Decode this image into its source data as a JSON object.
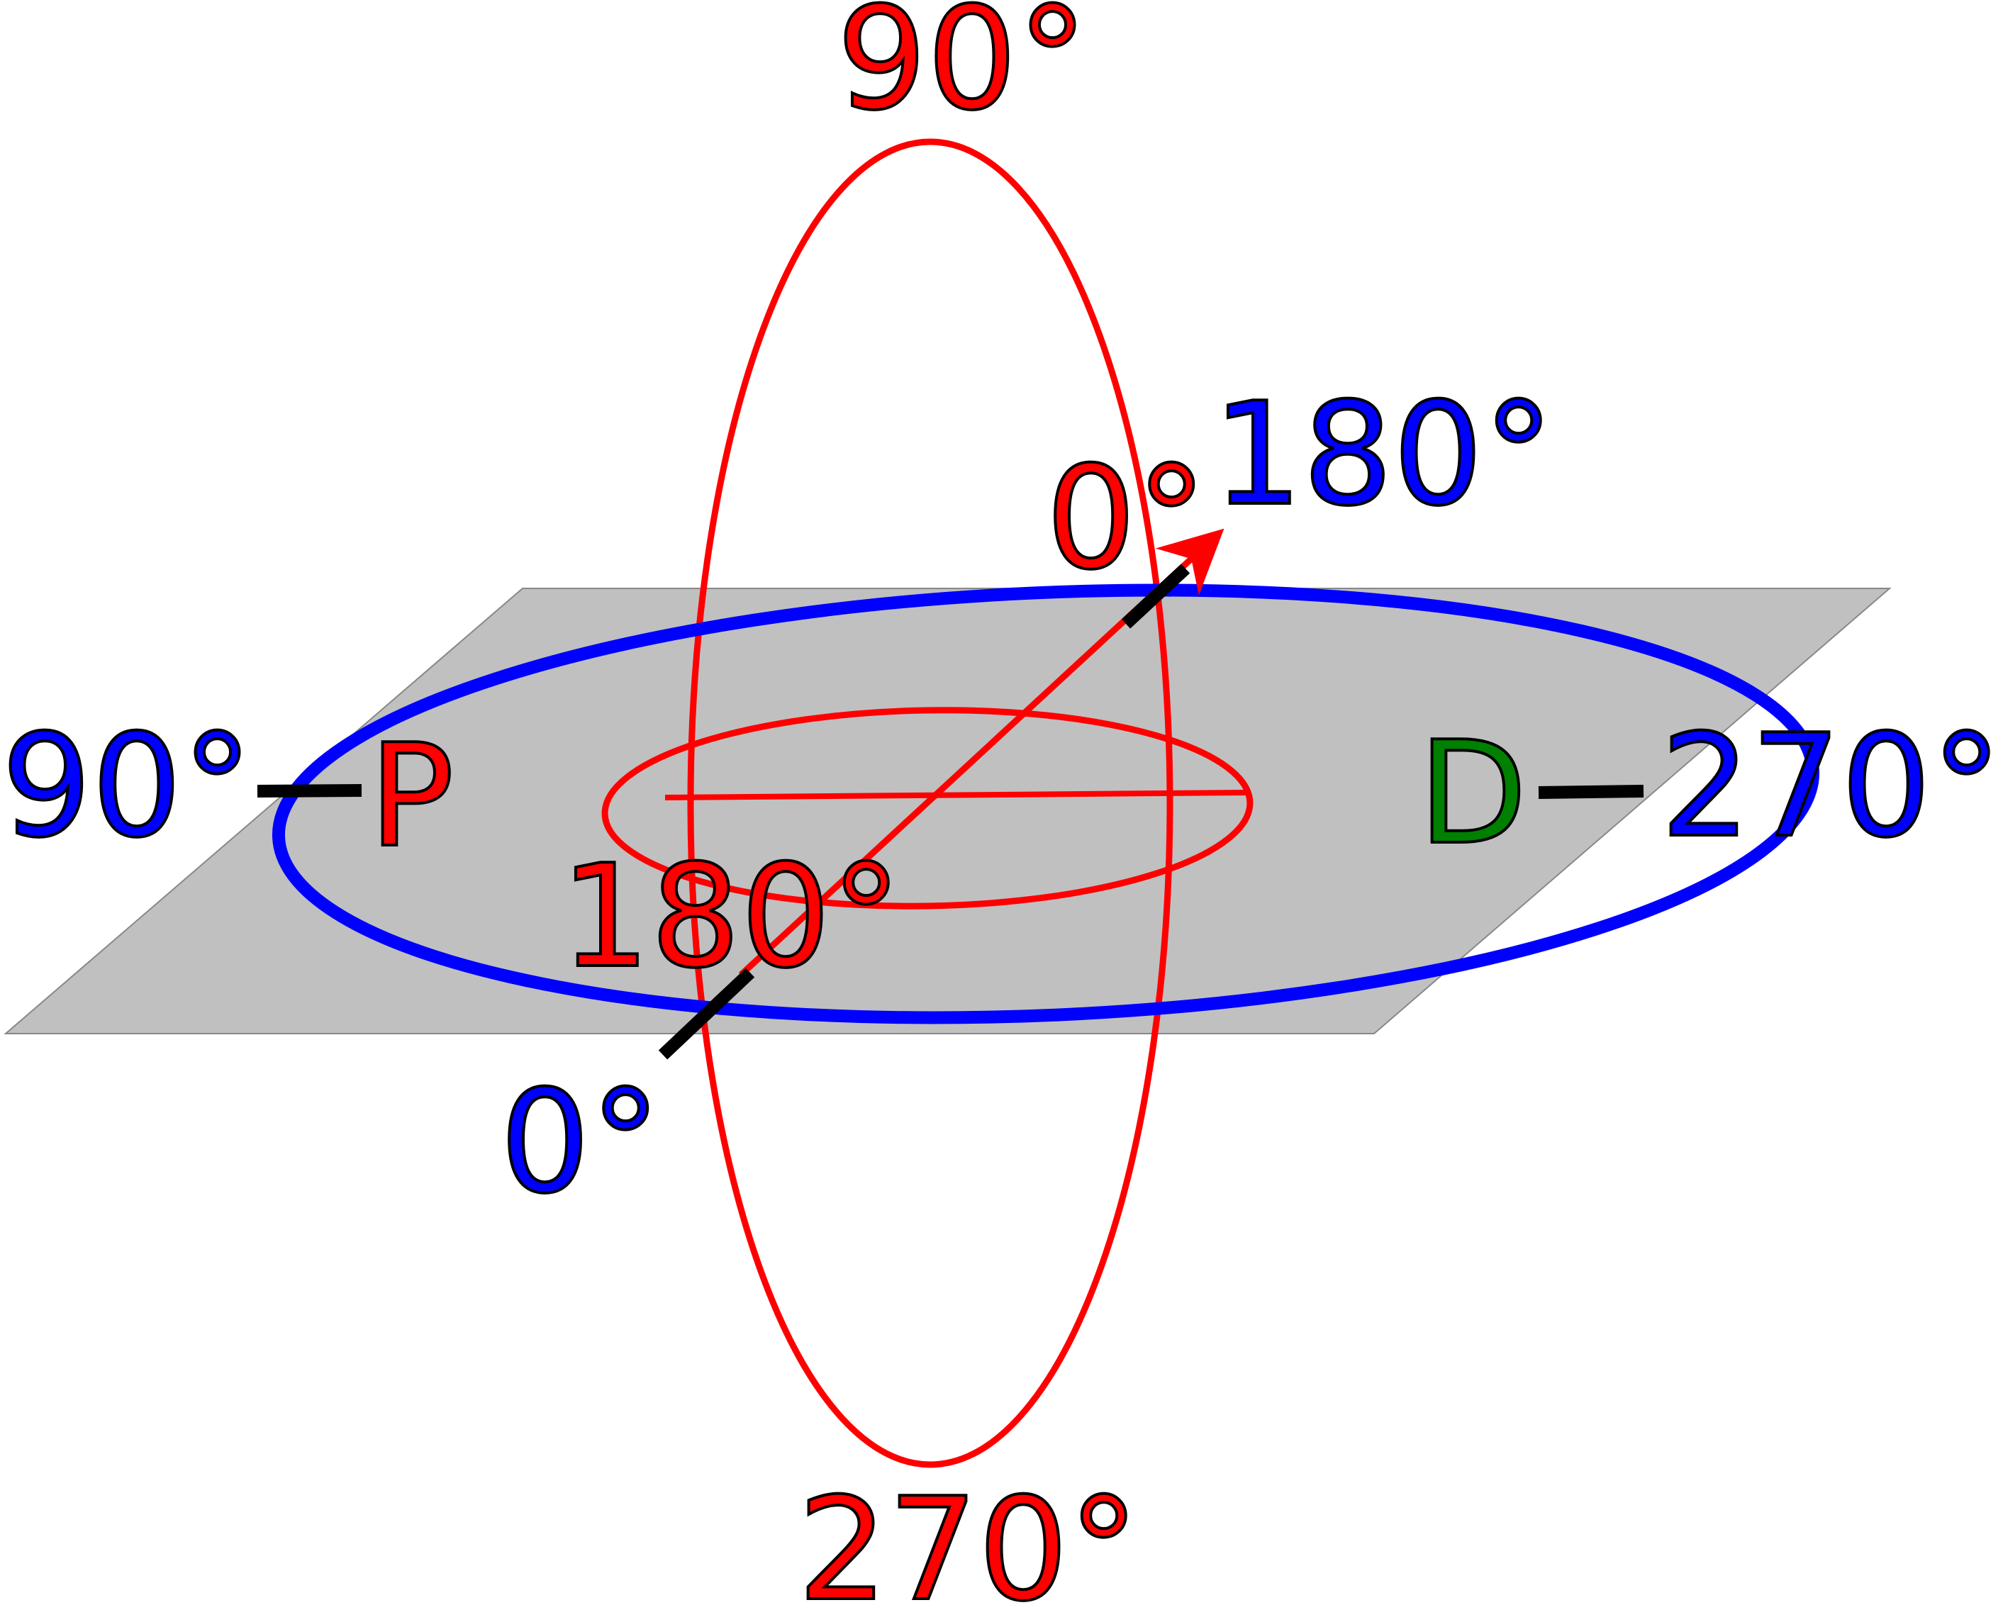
{
  "colors": {
    "plane": "#c0c0c0",
    "blue": "#0000ff",
    "red": "#ff0000",
    "green": "#008000",
    "black": "#000000"
  },
  "labels": {
    "red_top": "90°",
    "red_bottom": "270°",
    "red_right_zero": "0°",
    "red_center": "180°",
    "blue_right_top": "180°",
    "blue_left": "90°",
    "blue_right": "270°",
    "blue_bottom": "0°",
    "point_p": "P",
    "point_d": "D"
  }
}
